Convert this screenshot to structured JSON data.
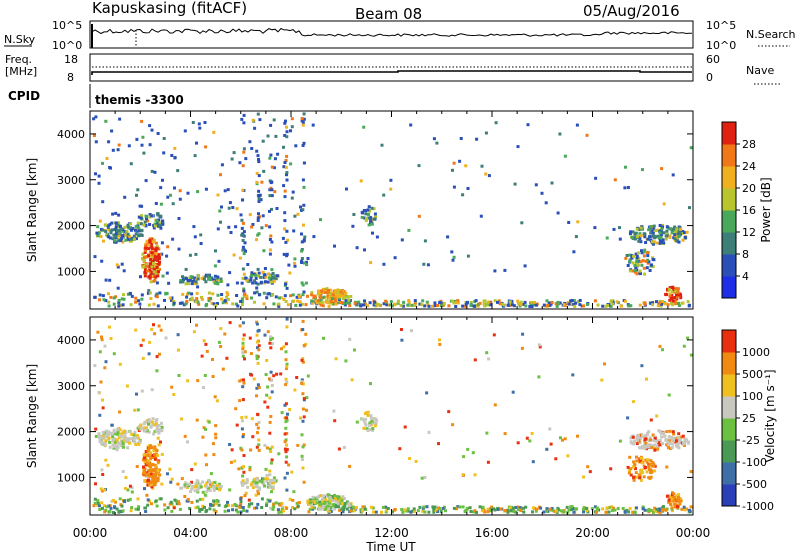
{
  "header": {
    "station": "Kapuskasing (fitACF)",
    "beam": "Beam 08",
    "date": "05/Aug/2016"
  },
  "panels": {
    "nsky_label": "N.Sky",
    "nsearch_label": "N.Search",
    "nsky_ticks": [
      "10^5",
      "10^0"
    ],
    "nsearch_ticks": [
      "10^5",
      "10^0"
    ],
    "freq_label": "Freq.",
    "freq_unit": "[MHz]",
    "freq_ticks": [
      "18",
      "8"
    ],
    "nave_label": "Nave",
    "nave_ticks": [
      "60",
      "0"
    ],
    "cpid_label": "CPID",
    "cpid_value": "themis -3300"
  },
  "chart_data": {
    "type": "heatmap",
    "x_ticks": [
      "00:00",
      "04:00",
      "08:00",
      "12:00",
      "16:00",
      "20:00",
      "00:00"
    ],
    "xlabel": "Time UT",
    "ylabel": "Slant Range [km]",
    "y_ticks": [
      "4000",
      "3000",
      "2000",
      "1000"
    ],
    "ylim": [
      180,
      4500
    ],
    "power": {
      "colorbar_label": "Power [dB]",
      "colorbar_ticks": [
        "28",
        "24",
        "20",
        "16",
        "12",
        "8",
        "4"
      ],
      "colors": [
        "#1e2ee6",
        "#2a4fb8",
        "#3e7e78",
        "#4aa85a",
        "#b9c52e",
        "#f0b020",
        "#f07818",
        "#e02010"
      ]
    },
    "velocity": {
      "colorbar_label": "Velocity [m s⁻¹]",
      "colorbar_ticks": [
        "1000",
        "500",
        "100",
        "25",
        "-25",
        "-100",
        "-500",
        "-1000"
      ],
      "colors": [
        "#2a3fb8",
        "#3e6fa8",
        "#4a9a55",
        "#6cc040",
        "#c8c8c0",
        "#f0c020",
        "#f08a10",
        "#e83010"
      ]
    }
  }
}
